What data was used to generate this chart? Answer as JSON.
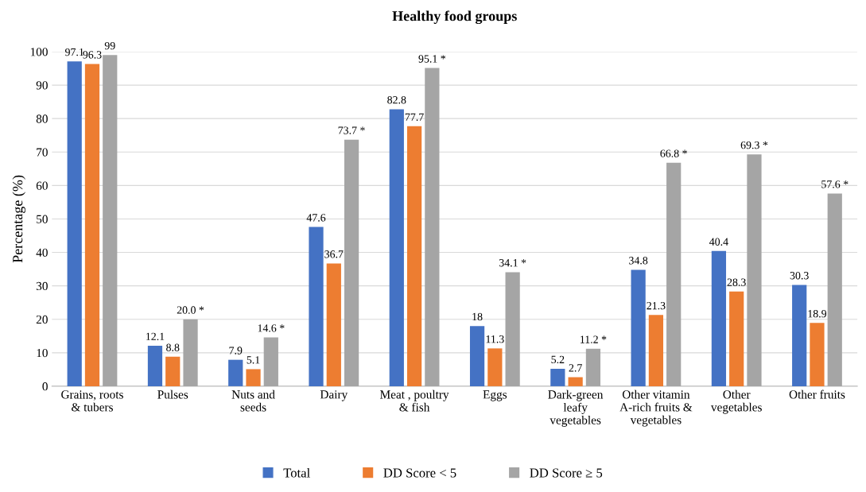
{
  "chart_data": {
    "type": "bar",
    "title": "Healthy food groups",
    "ylabel": "Percentage (%)",
    "categories": [
      "Grains, roots\n& tubers",
      "Pulses",
      "Nuts and\nseeds",
      "Dairy",
      "Meat , poultry\n& fish",
      "Eggs",
      "Dark-green\nleafy\nvegetables",
      "Other vitamin\nA-rich fruits &\nvegetables",
      "Other\nvegetables",
      "Other fruits"
    ],
    "series": [
      {
        "name": "Total",
        "color": "#4472c4",
        "values": [
          97.1,
          12.1,
          7.9,
          47.6,
          82.8,
          18,
          5.2,
          34.8,
          40.4,
          30.3
        ],
        "value_labels": [
          "97.1",
          "12.1",
          "7.9",
          "47.6",
          "82.8",
          "18",
          "5.2",
          "34.8",
          "40.4",
          "30.3"
        ]
      },
      {
        "name": "DD Score < 5",
        "color": "#ed7d31",
        "values": [
          96.3,
          8.8,
          5.1,
          36.7,
          77.7,
          11.3,
          2.7,
          21.3,
          28.3,
          18.9
        ],
        "value_labels": [
          "96.3",
          "8.8",
          "5.1",
          "36.7",
          "77.7",
          "11.3",
          "2.7",
          "21.3",
          "28.3",
          "18.9"
        ]
      },
      {
        "name": "DD Score ≥ 5",
        "color": "#a5a5a5",
        "values": [
          99,
          20.0,
          14.6,
          73.7,
          95.1,
          34.1,
          11.2,
          66.8,
          69.3,
          57.6
        ],
        "value_labels": [
          "99",
          "20.0 *",
          "14.6 *",
          "73.7 *",
          "95.1 *",
          "34.1 *",
          "11.2 *",
          "66.8 *",
          "69.3 *",
          "57.6 *"
        ]
      }
    ],
    "ylim": [
      0,
      100
    ],
    "yticks": [
      0,
      10,
      20,
      30,
      40,
      50,
      60,
      70,
      80,
      90,
      100
    ],
    "grid": "y",
    "legend": "bottom"
  }
}
